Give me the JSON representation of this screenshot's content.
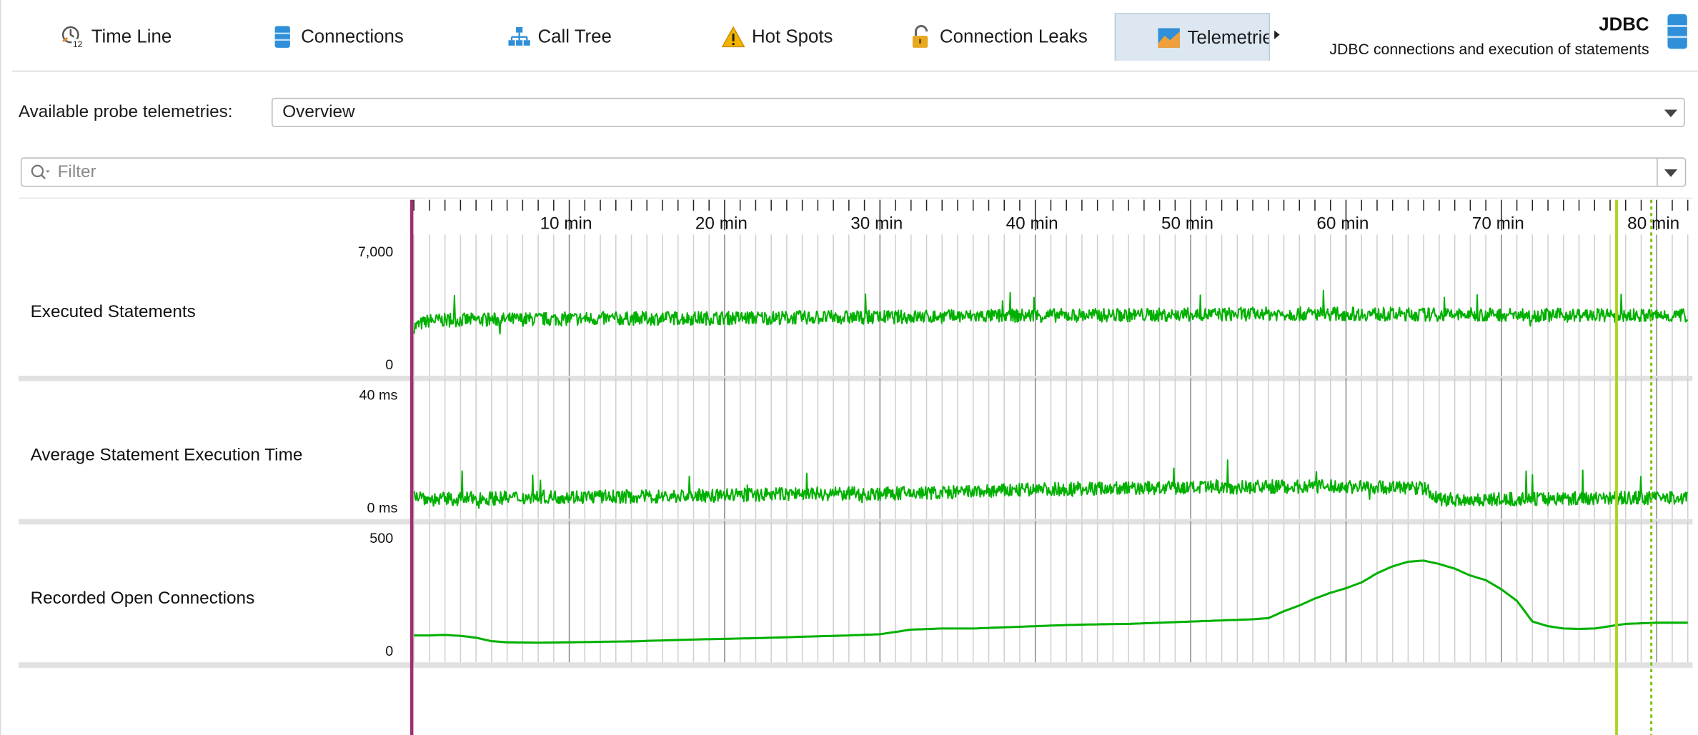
{
  "tabs": [
    {
      "label": "Time Line",
      "icon": "time-line-icon"
    },
    {
      "label": "Connections",
      "icon": "database-icon"
    },
    {
      "label": "Call Tree",
      "icon": "call-tree-icon"
    },
    {
      "label": "Hot Spots",
      "icon": "warning-icon"
    },
    {
      "label": "Connection Leaks",
      "icon": "padlock-icon"
    },
    {
      "label": "Telemetries",
      "icon": "telemetry-icon",
      "active": true
    }
  ],
  "header": {
    "title": "JDBC",
    "subtitle": "JDBC connections and execution of statements",
    "icon": "database-icon"
  },
  "probe": {
    "label": "Available probe telemetries:",
    "selected": "Overview"
  },
  "filter": {
    "placeholder": "Filter"
  },
  "colors": {
    "series": "#00b000",
    "start_marker": "#a0306e",
    "end_marker": "#a8d41c",
    "active_tab_bg": "#dde7f2",
    "separator": "#e1e1e1"
  },
  "chart_data": [
    {
      "type": "line",
      "title": "Executed Statements",
      "x_unit": "min",
      "x_ticks": [
        "10 min",
        "20 min",
        "30 min",
        "40 min",
        "50 min",
        "60 min",
        "70 min",
        "80 min"
      ],
      "y_top_label": "7,000",
      "y_bottom_label": "0",
      "ylim": [
        0,
        7000
      ],
      "x": [
        0,
        1,
        5,
        10,
        20,
        30,
        40,
        50,
        55,
        60,
        66,
        70,
        77,
        80,
        82
      ],
      "values": [
        2300,
        2700,
        2750,
        2800,
        2850,
        2900,
        3000,
        3050,
        3100,
        3100,
        3050,
        3050,
        3000,
        3000,
        3000
      ]
    },
    {
      "type": "line",
      "title": "Average Statement Execution Time",
      "x_unit": "min",
      "y_top_label": "40 ms",
      "y_bottom_label": "0 ms",
      "ylim": [
        0,
        40
      ],
      "x": [
        0,
        1,
        5,
        10,
        15,
        20,
        25,
        30,
        35,
        40,
        45,
        50,
        55,
        60,
        65,
        66,
        70,
        75,
        80,
        82
      ],
      "values": [
        5,
        3,
        3.5,
        4,
        4,
        4.5,
        5,
        5,
        5.5,
        6.5,
        7,
        7,
        7.5,
        7.5,
        7,
        3,
        3,
        3.5,
        3.5,
        3.5
      ]
    },
    {
      "type": "line",
      "title": "Recorded Open Connections",
      "x_unit": "min",
      "y_top_label": "500",
      "y_bottom_label": "0",
      "ylim": [
        0,
        500
      ],
      "x": [
        0,
        1,
        2,
        3,
        4,
        5,
        6,
        8,
        10,
        12,
        14,
        16,
        18,
        20,
        22,
        24,
        26,
        28,
        30,
        32,
        34,
        36,
        38,
        40,
        42,
        44,
        46,
        48,
        50,
        52,
        54,
        55,
        56,
        57,
        58,
        59,
        60,
        61,
        62,
        63,
        64,
        65,
        66,
        67,
        68,
        69,
        70,
        71,
        72,
        73,
        74,
        75,
        76,
        77,
        78,
        80,
        82
      ],
      "values": [
        70,
        70,
        72,
        68,
        60,
        45,
        40,
        38,
        40,
        42,
        44,
        48,
        52,
        55,
        58,
        62,
        66,
        70,
        75,
        95,
        100,
        100,
        105,
        110,
        115,
        118,
        120,
        125,
        130,
        135,
        140,
        145,
        175,
        200,
        230,
        255,
        275,
        300,
        340,
        370,
        390,
        395,
        380,
        360,
        330,
        310,
        270,
        220,
        130,
        110,
        100,
        98,
        100,
        110,
        120,
        125,
        125
      ]
    }
  ]
}
